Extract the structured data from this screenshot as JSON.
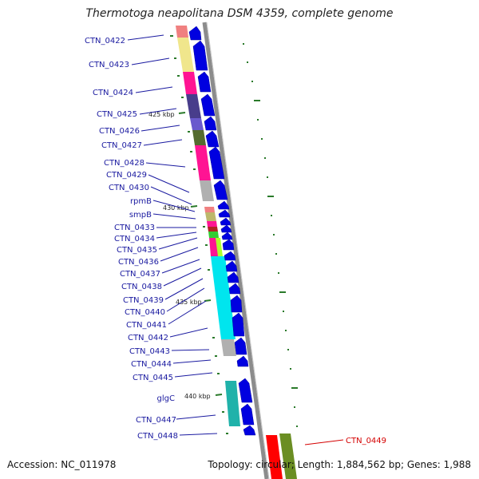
{
  "title": "Thermotoga neapolitana DSM 4359, complete genome",
  "footer": {
    "accession": "Accession: NC_011978",
    "summary": "Topology: circular; Length: 1,884,562 bp; Genes: 1,988"
  },
  "ticks": [
    "425 kbp",
    "430 kbp",
    "435 kbp",
    "440 kbp"
  ],
  "genes": [
    "CTN_0422",
    "CTN_0423",
    "CTN_0424",
    "CTN_0425",
    "CTN_0426",
    "CTN_0427",
    "CTN_0428",
    "CTN_0429",
    "CTN_0430",
    "rpmB",
    "smpB",
    "CTN_0433",
    "CTN_0434",
    "CTN_0435",
    "CTN_0436",
    "CTN_0437",
    "CTN_0438",
    "CTN_0439",
    "CTN_0440",
    "CTN_0441",
    "CTN_0442",
    "CTN_0443",
    "CTN_0444",
    "CTN_0445",
    "glgC",
    "CTN_0447",
    "CTN_0448"
  ],
  "highlight_gene": "CTN_0449",
  "colors": {
    "label": "#1a1aa0",
    "highlight": "#d40000",
    "arrow": "#0000e0",
    "backbone": "#8c8c8c",
    "tick": "#2a7a2a"
  }
}
